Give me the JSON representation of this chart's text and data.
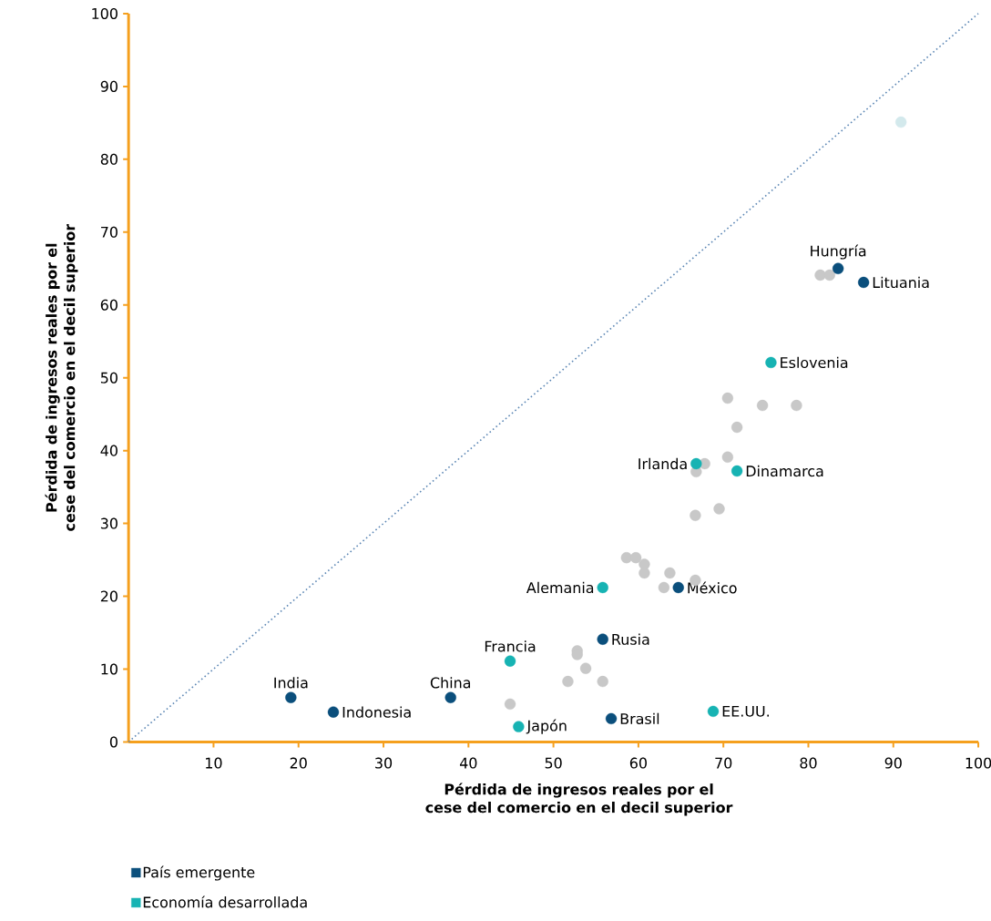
{
  "chart_data": {
    "type": "scatter",
    "xlabel": "Pérdida de ingresos reales por el cese del comercio en el decil superior",
    "ylabel": "Pérdida de ingresos reales por el cese del comercio en el decil superior",
    "xlim": [
      0,
      100
    ],
    "ylim": [
      0,
      100
    ],
    "xticks": [
      10,
      20,
      30,
      40,
      50,
      60,
      70,
      80,
      90,
      100
    ],
    "yticks": [
      0,
      10,
      20,
      30,
      40,
      50,
      60,
      70,
      80,
      90,
      100
    ],
    "marker": "circle",
    "grid": false,
    "legend": "bottom left",
    "series": [
      {
        "color": "#c8c8c8",
        "x": [
          81.4,
          82.5,
          70.5,
          74.6,
          78.6,
          71.6,
          70.5,
          67.8,
          66.8,
          66.7,
          69.5,
          58.6,
          59.7,
          60.7,
          60.7,
          63.7,
          66.7,
          63.0,
          52.8,
          52.8,
          53.8,
          51.7,
          55.8,
          44.9
        ],
        "values": [
          64.1,
          64.1,
          47.2,
          46.2,
          46.2,
          43.2,
          39.1,
          38.2,
          37.1,
          31.1,
          32.0,
          25.3,
          25.3,
          24.4,
          23.2,
          23.2,
          22.2,
          21.2,
          12.5,
          12.0,
          10.1,
          8.3,
          8.3,
          5.2
        ]
      },
      {
        "color": "#d3e9ec",
        "x": [
          90.9
        ],
        "values": [
          85.1
        ]
      },
      {
        "name": "País emergente",
        "color": "#0b4f7c",
        "x": [
          19.1,
          24.1,
          37.9,
          56.8,
          55.8,
          64.7,
          83.5,
          86.5
        ],
        "values": [
          6.1,
          4.1,
          6.1,
          3.2,
          14.1,
          21.2,
          65.0,
          63.1
        ]
      },
      {
        "name": "Economía desarrollada",
        "color": "#17b3b3",
        "x": [
          45.9,
          68.8,
          44.9,
          55.8,
          66.8,
          71.6,
          75.6
        ],
        "values": [
          2.1,
          4.2,
          11.1,
          21.2,
          38.2,
          37.2,
          52.1
        ]
      },
      {
        "type": "line",
        "line_style": "dotted",
        "marker": "none",
        "color": "#5b86b4",
        "x": [
          0,
          100
        ],
        "values": [
          0,
          100
        ]
      }
    ],
    "annotations": [
      {
        "text": "India",
        "x": 19.1,
        "y": 6.1
      },
      {
        "text": "Indonesia",
        "x": 24.1,
        "y": 4.1
      },
      {
        "text": "China",
        "x": 37.9,
        "y": 6.1
      },
      {
        "text": "Brasil",
        "x": 56.8,
        "y": 3.2
      },
      {
        "text": "Rusia",
        "x": 55.8,
        "y": 14.1
      },
      {
        "text": "México",
        "x": 64.7,
        "y": 21.2
      },
      {
        "text": "Hungría",
        "x": 83.5,
        "y": 65.0
      },
      {
        "text": "Lituania",
        "x": 86.5,
        "y": 63.1
      },
      {
        "text": "Japón",
        "x": 45.9,
        "y": 2.1
      },
      {
        "text": "EE.UU.",
        "x": 68.8,
        "y": 4.2
      },
      {
        "text": "Francia",
        "x": 44.9,
        "y": 11.1
      },
      {
        "text": "Alemania",
        "x": 55.8,
        "y": 21.2
      },
      {
        "text": "Irlanda",
        "x": 66.8,
        "y": 38.2
      },
      {
        "text": "Dinamarca",
        "x": 71.6,
        "y": 37.2
      },
      {
        "text": "Eslovenia",
        "x": 75.6,
        "y": 52.1
      }
    ]
  }
}
